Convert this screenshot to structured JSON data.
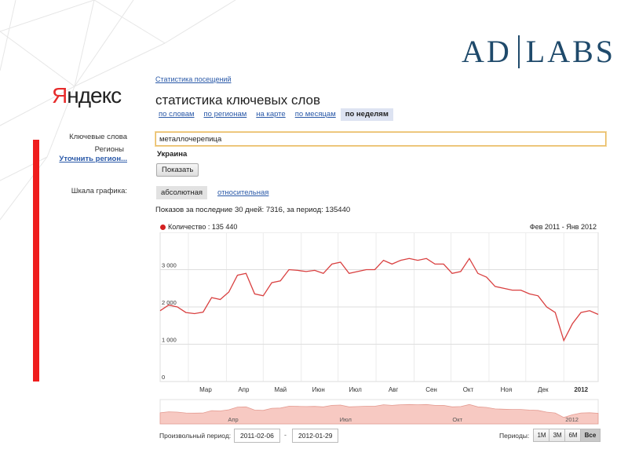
{
  "brand": {
    "left": "AD",
    "right": "LABS"
  },
  "yandex_logo": {
    "first": "Я",
    "rest": "ндекс"
  },
  "breadcrumb": "Статистика посещений",
  "page_title": "статистика ключевых слов",
  "tabs": [
    {
      "label": "по словам",
      "active": false
    },
    {
      "label": "по регионам",
      "active": false
    },
    {
      "label": "на карте",
      "active": false
    },
    {
      "label": "по месяцам",
      "active": false
    },
    {
      "label": "по неделям",
      "active": true
    }
  ],
  "form": {
    "keywords_label": "Ключевые слова",
    "keywords_value": "металлочерепица",
    "regions_label": "Регионы",
    "refine_region_link": "Уточнить регион...",
    "region_value": "Украина",
    "show_button": "Показать",
    "scale_label": "Шкала графика:",
    "scale_absolute": "абсолютная",
    "scale_relative": "относительная"
  },
  "summary": "Показов за последние 30 дней: 7316, за период: 135440",
  "legend_label": "Количество : 135 440",
  "period_range": "Фев 2011 - Янв 2012",
  "colors": {
    "series": "#d94040",
    "brand": "#1f4a6b",
    "accent_red": "#ef1d1d",
    "link": "#2a59a8"
  },
  "chart_data": {
    "type": "line",
    "title": "",
    "xlabel": "",
    "ylabel": "",
    "ylim": [
      0,
      4000
    ],
    "yticks": [
      "0",
      "1 000",
      "2 000",
      "3 000"
    ],
    "xticks": [
      "Мар",
      "Апр",
      "Май",
      "Июн",
      "Июл",
      "Авг",
      "Сен",
      "Окт",
      "Ноя",
      "Дек",
      "2012"
    ],
    "series": [
      {
        "name": "Количество",
        "x": [
          "2011-02-06",
          "2011-02-13",
          "2011-02-20",
          "2011-02-27",
          "2011-03-06",
          "2011-03-13",
          "2011-03-20",
          "2011-03-27",
          "2011-04-03",
          "2011-04-10",
          "2011-04-17",
          "2011-04-24",
          "2011-05-01",
          "2011-05-08",
          "2011-05-15",
          "2011-05-22",
          "2011-05-29",
          "2011-06-05",
          "2011-06-12",
          "2011-06-19",
          "2011-06-26",
          "2011-07-03",
          "2011-07-10",
          "2011-07-17",
          "2011-07-24",
          "2011-07-31",
          "2011-08-07",
          "2011-08-14",
          "2011-08-21",
          "2011-08-28",
          "2011-09-04",
          "2011-09-11",
          "2011-09-18",
          "2011-09-25",
          "2011-10-02",
          "2011-10-09",
          "2011-10-16",
          "2011-10-23",
          "2011-10-30",
          "2011-11-06",
          "2011-11-13",
          "2011-11-20",
          "2011-11-27",
          "2011-12-04",
          "2011-12-11",
          "2011-12-18",
          "2011-12-25",
          "2012-01-01",
          "2012-01-08",
          "2012-01-15",
          "2012-01-22",
          "2012-01-29"
        ],
        "values": [
          1900,
          2050,
          2000,
          1850,
          1820,
          1860,
          2250,
          2200,
          2400,
          2850,
          2900,
          2350,
          2300,
          2650,
          2700,
          3000,
          2980,
          2950,
          2980,
          2900,
          3150,
          3200,
          2900,
          2950,
          3000,
          3000,
          3250,
          3150,
          3250,
          3300,
          3250,
          3300,
          3150,
          3150,
          2900,
          2950,
          3300,
          2900,
          2800,
          2550,
          2500,
          2450,
          2450,
          2350,
          2300,
          2000,
          1850,
          1100,
          1550,
          1850,
          1900,
          1800
        ]
      }
    ],
    "navigator_labels": [
      "Апр",
      "Июл",
      "Окт",
      "2012"
    ]
  },
  "bottom": {
    "custom_period_label": "Произвольный период:",
    "date_from": "2011-02-06",
    "date_sep": "-",
    "date_to": "2012-01-29",
    "periods_label": "Периоды:",
    "period_buttons": [
      {
        "label": "1М",
        "active": false
      },
      {
        "label": "3М",
        "active": false
      },
      {
        "label": "6М",
        "active": false
      },
      {
        "label": "Все",
        "active": true
      }
    ]
  }
}
